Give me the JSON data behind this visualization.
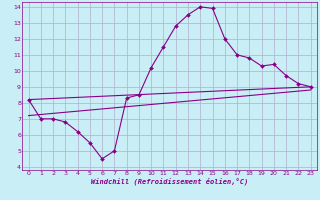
{
  "xlabel": "Windchill (Refroidissement éolien,°C)",
  "bg_color": "#caeef5",
  "grid_color": "#b0b0cc",
  "line_color": "#880088",
  "xlim": [
    -0.5,
    23.5
  ],
  "ylim": [
    3.8,
    14.3
  ],
  "yticks": [
    4,
    5,
    6,
    7,
    8,
    9,
    10,
    11,
    12,
    13,
    14
  ],
  "xticks": [
    0,
    1,
    2,
    3,
    4,
    5,
    6,
    7,
    8,
    9,
    10,
    11,
    12,
    13,
    14,
    15,
    16,
    17,
    18,
    19,
    20,
    21,
    22,
    23
  ],
  "main_curve_x": [
    0,
    1,
    2,
    3,
    4,
    5,
    6,
    7,
    8,
    9,
    10,
    11,
    12,
    13,
    14,
    15,
    16,
    17,
    18,
    19,
    20,
    21,
    22,
    23
  ],
  "main_curve_y": [
    8.2,
    7.0,
    7.0,
    6.8,
    6.2,
    5.5,
    4.5,
    5.0,
    8.3,
    8.5,
    10.2,
    11.5,
    12.8,
    13.5,
    14.0,
    13.9,
    12.0,
    11.0,
    10.8,
    10.3,
    10.4,
    9.7,
    9.2,
    9.0
  ],
  "line2_x": [
    0,
    23
  ],
  "line2_y": [
    8.2,
    9.0
  ],
  "line3_x": [
    0,
    23
  ],
  "line3_y": [
    7.2,
    8.8
  ],
  "tick_fontsize": 4.5,
  "xlabel_fontsize": 5.0
}
